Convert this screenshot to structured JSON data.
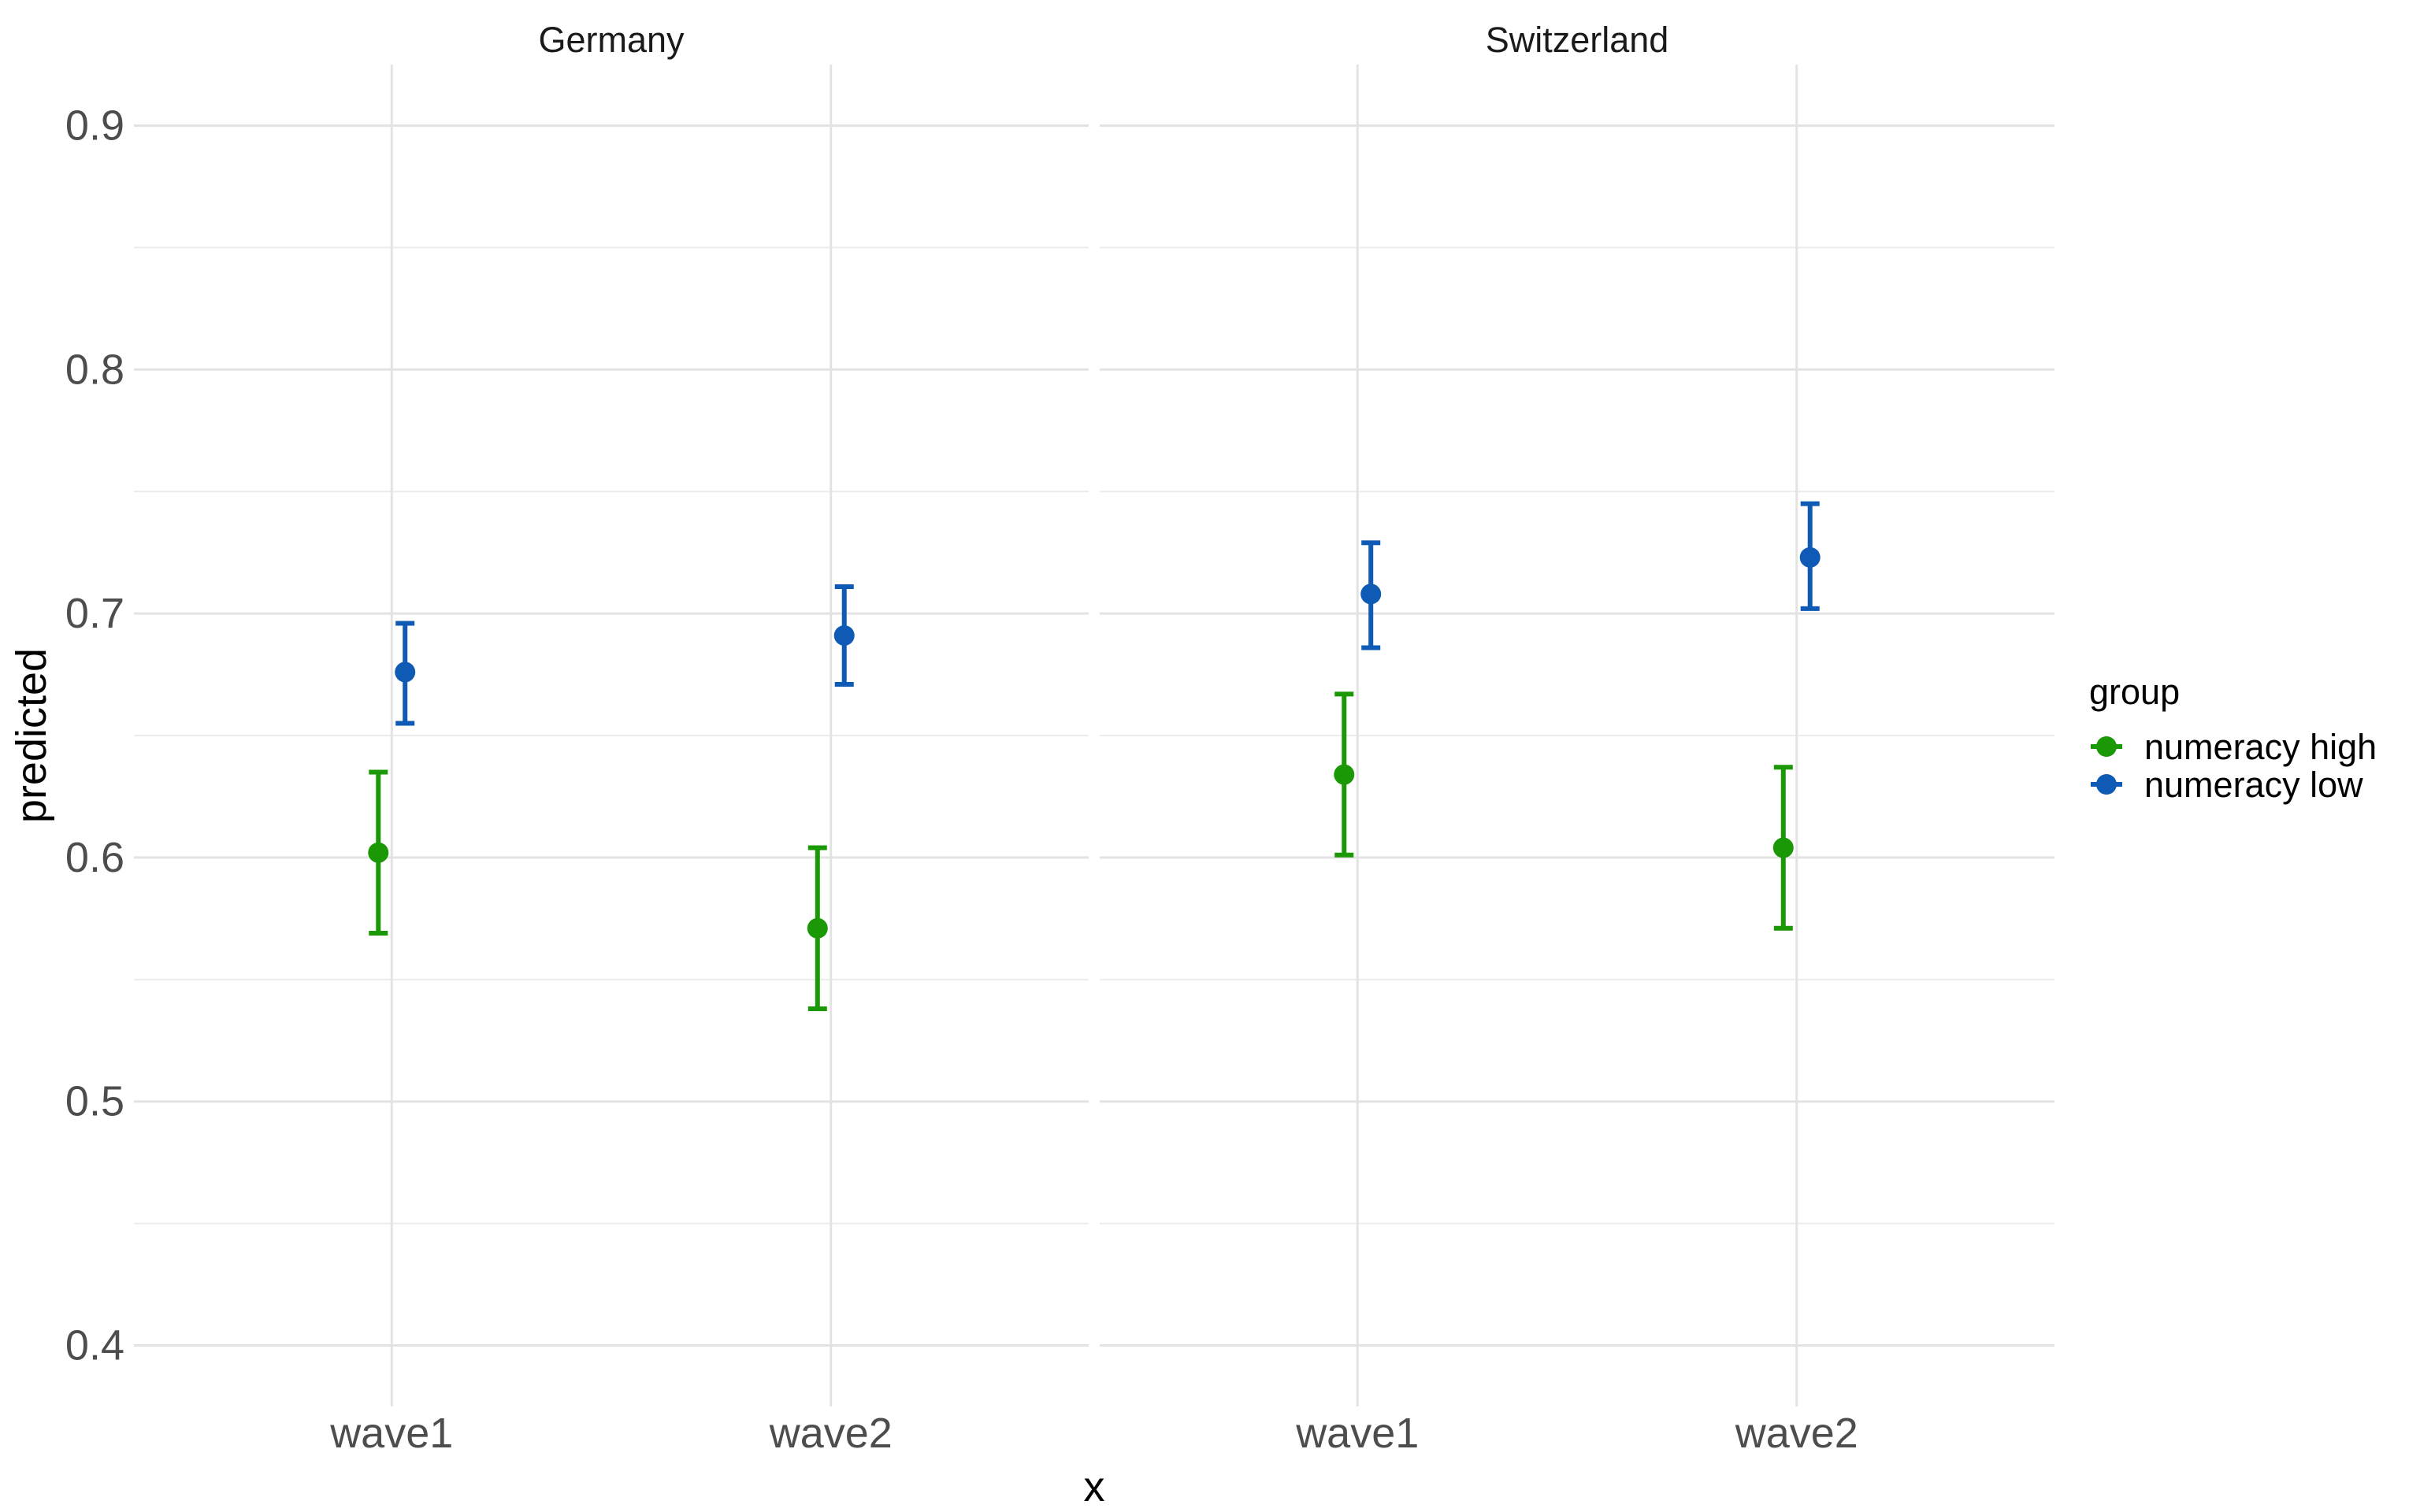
{
  "chart_data": {
    "type": "scatter",
    "subtype": "point-with-errorbars, faceted",
    "facets": [
      "Germany",
      "Switzerland"
    ],
    "categories": [
      "wave1",
      "wave2"
    ],
    "xlabel": "x",
    "ylabel": "predicted",
    "ylim": [
      0.375,
      0.925
    ],
    "yticks": [
      0.4,
      0.5,
      0.6,
      0.7,
      0.8,
      0.9
    ],
    "ytick_labels": [
      "0.4",
      "0.5",
      "0.6",
      "0.7",
      "0.8",
      "0.9"
    ],
    "grid": true,
    "legend": {
      "title": "group",
      "position": "right"
    },
    "series": [
      {
        "name": "numeracy high",
        "color": "#1a9806",
        "points": [
          {
            "facet": "Germany",
            "x": "wave1",
            "y": 0.602,
            "lower": 0.569,
            "upper": 0.635
          },
          {
            "facet": "Germany",
            "x": "wave2",
            "y": 0.571,
            "lower": 0.538,
            "upper": 0.604
          },
          {
            "facet": "Switzerland",
            "x": "wave1",
            "y": 0.634,
            "lower": 0.601,
            "upper": 0.667
          },
          {
            "facet": "Switzerland",
            "x": "wave2",
            "y": 0.604,
            "lower": 0.571,
            "upper": 0.637
          }
        ]
      },
      {
        "name": "numeracy low",
        "color": "#0e5ab4",
        "points": [
          {
            "facet": "Germany",
            "x": "wave1",
            "y": 0.676,
            "lower": 0.655,
            "upper": 0.696
          },
          {
            "facet": "Germany",
            "x": "wave2",
            "y": 0.691,
            "lower": 0.671,
            "upper": 0.711
          },
          {
            "facet": "Switzerland",
            "x": "wave1",
            "y": 0.708,
            "lower": 0.686,
            "upper": 0.729
          },
          {
            "facet": "Switzerland",
            "x": "wave2",
            "y": 0.723,
            "lower": 0.702,
            "upper": 0.745
          }
        ]
      }
    ]
  }
}
